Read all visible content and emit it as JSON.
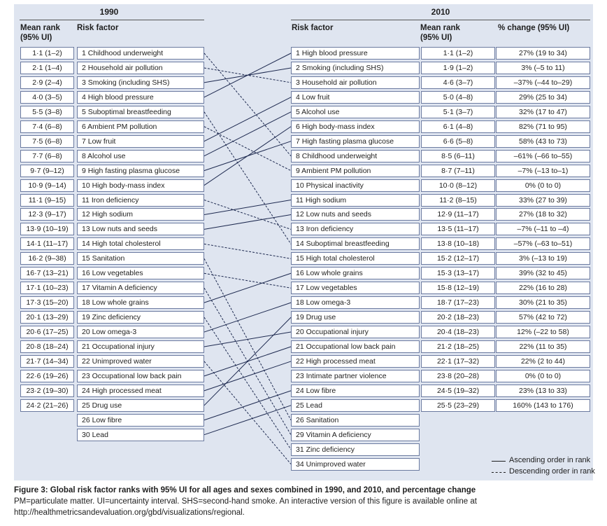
{
  "figure": {
    "year_left": "1990",
    "year_right": "2010",
    "headers": {
      "mean_rank_left": [
        "Mean rank",
        "(95% UI)"
      ],
      "risk_factor_left": "Risk factor",
      "risk_factor_right": "Risk factor",
      "mean_rank_right": [
        "Mean rank",
        "(95% UI)"
      ],
      "pct_change": "% change (95% UI)"
    },
    "left_ranks": [
      "1·1 (1–2)",
      "2·1 (1–4)",
      "2·9 (2–4)",
      "4·0 (3–5)",
      "5·5 (3–8)",
      "7·4 (6–8)",
      "7·5 (6–8)",
      "7·7 (6–8)",
      "9·7 (9–12)",
      "10·9 (9–14)",
      "11·1 (9–15)",
      "12·3 (9–17)",
      "13·9 (10–19)",
      "14·1 (11–17)",
      "16·2 (9–38)",
      "16·7 (13–21)",
      "17·1 (10–23)",
      "17·3 (15–20)",
      "20·1 (13–29)",
      "20·6 (17–25)",
      "20·8 (18–24)",
      "21·7 (14–34)",
      "22·6 (19–26)",
      "23·2 (19–30)",
      "24·2 (21–26)"
    ],
    "left_factors": [
      "1 Childhood underweight",
      "2 Household air pollution",
      "3 Smoking (including SHS)",
      "4 High blood pressure",
      "5 Suboptimal breastfeeding",
      "6 Ambient PM pollution",
      "7 Low fruit",
      "8 Alcohol use",
      "9 High fasting plasma glucose",
      "10 High body-mass index",
      "11 Iron deficiency",
      "12 High sodium",
      "13 Low nuts and seeds",
      "14 High total cholesterol",
      "15 Sanitation",
      "16 Low vegetables",
      "17 Vitamin A deficiency",
      "18 Low whole grains",
      "19 Zinc deficiency",
      "20 Low omega-3",
      "21 Occupational injury",
      "22 Unimproved water",
      "23 Occupational low back pain",
      "24 High processed meat",
      "25 Drug use",
      "26 Low fibre",
      "30 Lead"
    ],
    "right_factors": [
      "1 High blood pressure",
      "2 Smoking (including SHS)",
      "3 Household air pollution",
      "4 Low fruit",
      "5 Alcohol use",
      "6 High body-mass index",
      "7 High fasting plasma glucose",
      "8 Childhood underweight",
      "9 Ambient PM pollution",
      "10 Physical inactivity",
      "11 High sodium",
      "12 Low nuts and seeds",
      "13 Iron deficiency",
      "14 Suboptimal breastfeeding",
      "15 High total cholesterol",
      "16 Low whole grains",
      "17 Low vegetables",
      "18 Low omega-3",
      "19 Drug use",
      "20 Occupational injury",
      "21 Occupational low back pain",
      "22 High processed meat",
      "23 Intimate partner violence",
      "24 Low fibre",
      "25 Lead",
      "26 Sanitation",
      "29 Vitamin A deficiency",
      "31 Zinc deficiency",
      "34 Unimproved water"
    ],
    "right_ranks": [
      "1·1 (1–2)",
      "1·9 (1–2)",
      "4·6 (3–7)",
      "5·0 (4–8)",
      "5·1 (3–7)",
      "6·1 (4–8)",
      "6·6 (5–8)",
      "8·5 (6–11)",
      "8·7 (7–11)",
      "10·0 (8–12)",
      "11·2 (8–15)",
      "12·9 (11–17)",
      "13·5 (11–17)",
      "13·8 (10–18)",
      "15·2 (12–17)",
      "15·3 (13–17)",
      "15·8 (12–19)",
      "18·7 (17–23)",
      "20·2 (18–23)",
      "20·4 (18–23)",
      "21·2 (18–25)",
      "22·1 (17–32)",
      "23·8 (20–28)",
      "24·5 (19–32)",
      "25·5 (23–29)"
    ],
    "pct_changes": [
      "27% (19 to 34)",
      "3% (–5 to 11)",
      "–37% (–44 to–29)",
      "29% (25 to 34)",
      "32% (17 to 47)",
      "82% (71 to 95)",
      "58% (43 to 73)",
      "–61% (–66 to–55)",
      "–7% (–13 to–1)",
      "0% (0 to 0)",
      "33% (27 to 39)",
      "27% (18 to 32)",
      "–7% (–11 to –4)",
      "–57% (–63 to–51)",
      "3% (–13 to 19)",
      "39% (32 to 45)",
      "22% (16 to 28)",
      "30% (21 to 35)",
      "57% (42 to 72)",
      "12% (–22 to 58)",
      "22% (11 to 35)",
      "22% (2 to 44)",
      "0% (0 to 0)",
      "23% (13 to 33)",
      "160% (143 to 176)"
    ],
    "links": [
      {
        "from": 0,
        "to": 7,
        "style": "dashed"
      },
      {
        "from": 1,
        "to": 2,
        "style": "dashed"
      },
      {
        "from": 2,
        "to": 1,
        "style": "solid"
      },
      {
        "from": 3,
        "to": 0,
        "style": "solid"
      },
      {
        "from": 4,
        "to": 13,
        "style": "dashed"
      },
      {
        "from": 5,
        "to": 8,
        "style": "dashed"
      },
      {
        "from": 6,
        "to": 3,
        "style": "solid"
      },
      {
        "from": 7,
        "to": 4,
        "style": "solid"
      },
      {
        "from": 8,
        "to": 6,
        "style": "solid"
      },
      {
        "from": 9,
        "to": 5,
        "style": "solid"
      },
      {
        "from": 10,
        "to": 12,
        "style": "dashed"
      },
      {
        "from": 11,
        "to": 10,
        "style": "solid"
      },
      {
        "from": 12,
        "to": 11,
        "style": "solid"
      },
      {
        "from": 13,
        "to": 14,
        "style": "dashed"
      },
      {
        "from": 14,
        "to": 25,
        "style": "dashed"
      },
      {
        "from": 15,
        "to": 16,
        "style": "dashed"
      },
      {
        "from": 16,
        "to": 26,
        "style": "dashed"
      },
      {
        "from": 17,
        "to": 15,
        "style": "solid"
      },
      {
        "from": 18,
        "to": 27,
        "style": "dashed"
      },
      {
        "from": 19,
        "to": 17,
        "style": "solid"
      },
      {
        "from": 20,
        "to": 19,
        "style": "solid"
      },
      {
        "from": 21,
        "to": 28,
        "style": "dashed"
      },
      {
        "from": 22,
        "to": 20,
        "style": "solid"
      },
      {
        "from": 23,
        "to": 21,
        "style": "solid"
      },
      {
        "from": 24,
        "to": 18,
        "style": "solid"
      },
      {
        "from": 25,
        "to": 23,
        "style": "solid"
      },
      {
        "from": 26,
        "to": 24,
        "style": "solid"
      }
    ],
    "legend": {
      "ascending": "Ascending order in rank",
      "descending": "Descending order in rank"
    }
  },
  "caption": {
    "bold": "Figure 3: Global risk factor ranks with 95% UI for all ages and sexes combined in 1990, and 2010, and percentage change",
    "line2": "PM=particulate matter. UI=uncertainty interval. SHS=second-hand smoke. An interactive version of this figure is available online at",
    "line3": "http://healthmetricsandevaluation.org/gbd/visualizations/regional."
  }
}
